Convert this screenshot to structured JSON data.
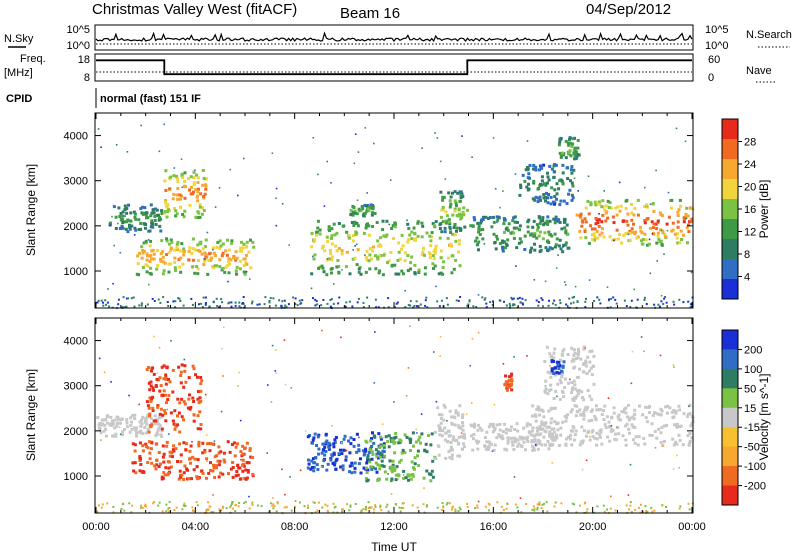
{
  "header": {
    "title": "Christmas Valley West (fitACF)",
    "beam": "Beam 16",
    "date": "04/Sep/2012"
  },
  "nsky_panel": {
    "left_label": "N.Sky",
    "left_ticks": [
      "10^5",
      "10^0"
    ],
    "right_ticks": [
      "10^5",
      "10^0"
    ],
    "right_label": "N.Search"
  },
  "freq_panel": {
    "left_label_1": "Freq.",
    "left_label_2": "[MHz]",
    "left_ticks": [
      "18",
      "8"
    ],
    "right_ticks": [
      "60",
      "0"
    ],
    "right_label": "Nave"
  },
  "cpid": {
    "label": "CPID",
    "text": "normal (fast) 151 IF"
  },
  "colors": {
    "ground_scatter": "#c8c8c8",
    "power_scale": [
      "#1a2fd6",
      "#2f6ec4",
      "#2e7d62",
      "#3f9a48",
      "#79c243",
      "#f2d43c",
      "#f7a830",
      "#f06a22",
      "#e82a1c"
    ],
    "velocity_scale": [
      "#1a2fd6",
      "#2f6ec4",
      "#2e7d62",
      "#79c243",
      "#c8c8c8",
      "#f7c030",
      "#f7a830",
      "#f06a22",
      "#e82a1c"
    ]
  },
  "chart_data": [
    {
      "type": "heatmap",
      "panel": "power",
      "xlabel": "",
      "ylabel": "Slant Range [km]",
      "xlim": [
        "00:00",
        "24:00"
      ],
      "ylim": [
        180,
        4500
      ],
      "y_ticks": [
        "4000",
        "3000",
        "2000",
        "1000"
      ],
      "colorbar_label": "Power [dB]",
      "colorbar_ticks": [
        "28",
        "24",
        "20",
        "16",
        "12",
        "8",
        "4"
      ],
      "colorbar_range": [
        0,
        32
      ],
      "blobs": [
        {
          "t0": 0.5,
          "t1": 2.6,
          "r0": 1900,
          "r1": 2500,
          "level": 0.35
        },
        {
          "t0": 2.7,
          "t1": 4.4,
          "r0": 2200,
          "r1": 3300,
          "level": 0.75
        },
        {
          "t0": 1.6,
          "t1": 6.3,
          "r0": 950,
          "r1": 1750,
          "level": 0.72
        },
        {
          "t0": 8.6,
          "t1": 14.6,
          "r0": 950,
          "r1": 2150,
          "level": 0.6
        },
        {
          "t0": 10.2,
          "t1": 11.2,
          "r0": 2250,
          "r1": 2500,
          "level": 0.45
        },
        {
          "t0": 13.8,
          "t1": 14.9,
          "r0": 1900,
          "r1": 2800,
          "level": 0.5
        },
        {
          "t0": 15.0,
          "t1": 19.0,
          "r0": 1450,
          "r1": 2250,
          "level": 0.4
        },
        {
          "t0": 17.0,
          "t1": 19.2,
          "r0": 2500,
          "r1": 3400,
          "level": 0.3
        },
        {
          "t0": 18.6,
          "t1": 19.4,
          "r0": 3500,
          "r1": 4000,
          "level": 0.45
        },
        {
          "t0": 19.3,
          "t1": 24.0,
          "r0": 1600,
          "r1": 2600,
          "level": 0.82
        }
      ]
    },
    {
      "type": "heatmap",
      "panel": "velocity",
      "xlabel": "Time UT",
      "ylabel": "Slant Range [km]",
      "x_ticks": [
        "00:00",
        "04:00",
        "08:00",
        "12:00",
        "16:00",
        "20:00",
        "00:00"
      ],
      "xlim": [
        "00:00",
        "24:00"
      ],
      "ylim": [
        180,
        4500
      ],
      "y_ticks": [
        "4000",
        "3000",
        "2000",
        "1000"
      ],
      "colorbar_label": "Velocity [m s^-1]",
      "colorbar_ticks": [
        "200",
        "100",
        "50",
        "15",
        "-15",
        "-50",
        "-100",
        "-200"
      ],
      "colorbar_range": [
        -250,
        250
      ],
      "blobs": [
        {
          "t0": 0.0,
          "t1": 2.6,
          "r0": 1900,
          "r1": 2400,
          "value": 0
        },
        {
          "t0": 2.0,
          "t1": 4.2,
          "r0": 2000,
          "r1": 3500,
          "value": -200
        },
        {
          "t0": 1.4,
          "t1": 6.3,
          "r0": 950,
          "r1": 1800,
          "value": -200
        },
        {
          "t0": 8.4,
          "t1": 11.6,
          "r0": 1100,
          "r1": 2000,
          "value": 200
        },
        {
          "t0": 10.8,
          "t1": 13.6,
          "r0": 900,
          "r1": 2000,
          "value": 45
        },
        {
          "t0": 13.6,
          "t1": 14.8,
          "r0": 1400,
          "r1": 2600,
          "value": 0
        },
        {
          "t0": 15.0,
          "t1": 18.5,
          "r0": 1600,
          "r1": 2200,
          "value": 0
        },
        {
          "t0": 17.5,
          "t1": 24.0,
          "r0": 1700,
          "r1": 2600,
          "value": 0
        },
        {
          "t0": 18.0,
          "t1": 20.0,
          "r0": 2700,
          "r1": 3900,
          "value": 0
        },
        {
          "t0": 16.4,
          "t1": 16.7,
          "r0": 2900,
          "r1": 3300,
          "value": -200
        },
        {
          "t0": 18.3,
          "t1": 18.8,
          "r0": 3300,
          "r1": 3600,
          "value": 200
        }
      ]
    },
    {
      "type": "line",
      "panel": "frequency",
      "ylabel": "Freq. [MHz]",
      "ylim": [
        8,
        18
      ],
      "series": [
        {
          "x": [
            0,
            2.75,
            2.75,
            14.95,
            14.95,
            24
          ],
          "y": [
            16.5,
            16.5,
            10.2,
            10.2,
            16.5,
            16.5
          ]
        }
      ]
    },
    {
      "type": "line",
      "panel": "nsky",
      "ylim": [
        0,
        5
      ]
    }
  ]
}
